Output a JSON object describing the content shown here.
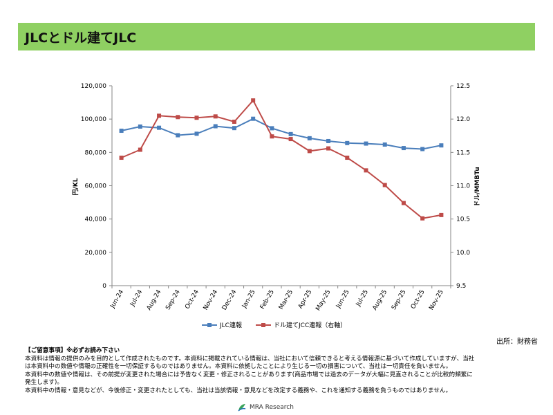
{
  "header": {
    "title": "JLCとドル建てJLC"
  },
  "chart_data": {
    "type": "line",
    "categories": [
      "Jun-24",
      "Jul-24",
      "Aug-24",
      "Sep-24",
      "Oct-24",
      "Nov-24",
      "Dec-24",
      "Jan-25",
      "Feb-25",
      "Mar-25",
      "Apr-25",
      "May-25",
      "Jun-25",
      "Jul-25",
      "Aug-25",
      "Sep-25",
      "Oct-25",
      "Nov-25"
    ],
    "series": [
      {
        "name": "JLC連報",
        "axis": "left",
        "color": "#4a7ebb",
        "marker": "square",
        "values": [
          93000,
          95500,
          94800,
          90300,
          91200,
          95700,
          94600,
          100200,
          94500,
          91000,
          88500,
          86800,
          85600,
          85300,
          84700,
          82600,
          82000,
          84200
        ]
      },
      {
        "name": "ドル建てJCC連報（右軸）",
        "axis": "right",
        "color": "#be4b48",
        "marker": "square",
        "values": [
          11.42,
          11.54,
          12.05,
          12.03,
          12.02,
          12.04,
          11.96,
          12.28,
          11.74,
          11.7,
          11.52,
          11.56,
          11.42,
          11.23,
          11.01,
          10.74,
          10.51,
          10.56
        ]
      }
    ],
    "y_left": {
      "label": "円/KL",
      "min": 0,
      "max": 120000,
      "ticks": [
        "0",
        "20,000",
        "40,000",
        "60,000",
        "80,000",
        "100,000",
        "120,000"
      ]
    },
    "y_right": {
      "label": "ドル/MMBTu",
      "min": 9.5,
      "max": 12.5,
      "ticks": [
        "9.5",
        "10.0",
        "10.5",
        "11.0",
        "11.5",
        "12.0",
        "12.5"
      ]
    },
    "legend_position": "bottom"
  },
  "source": "出所：財務省",
  "notice": {
    "heading": "【ご留意事項】※必ずお読み下さい",
    "lines": [
      "本資料は情報の提供のみを目的として作成されたものです。本資料に掲載されている情報は、当社において信頼できると考える情報源に基づいて作成していますが、当社",
      "は本資料中の数値や情報の正確性を一切保証するものではありません。本資料に依拠したことにより生じる一切の損害について、当社は一切責任を負いません。",
      "本資料中の数値や情報は、その前提が変更された場合には予告なく変更・修正されることがあります(商品市場では過去のデータが大幅に見直されることが比較的頻繁に",
      "発生します)。",
      "本資料中の情報・意見などが、今後修正・変更されたとしても、当社は当該情報・意見などを改定する義務や、これを通知する義務を負うものではありません。"
    ]
  },
  "footer": {
    "logo_text": "MRA Research"
  }
}
